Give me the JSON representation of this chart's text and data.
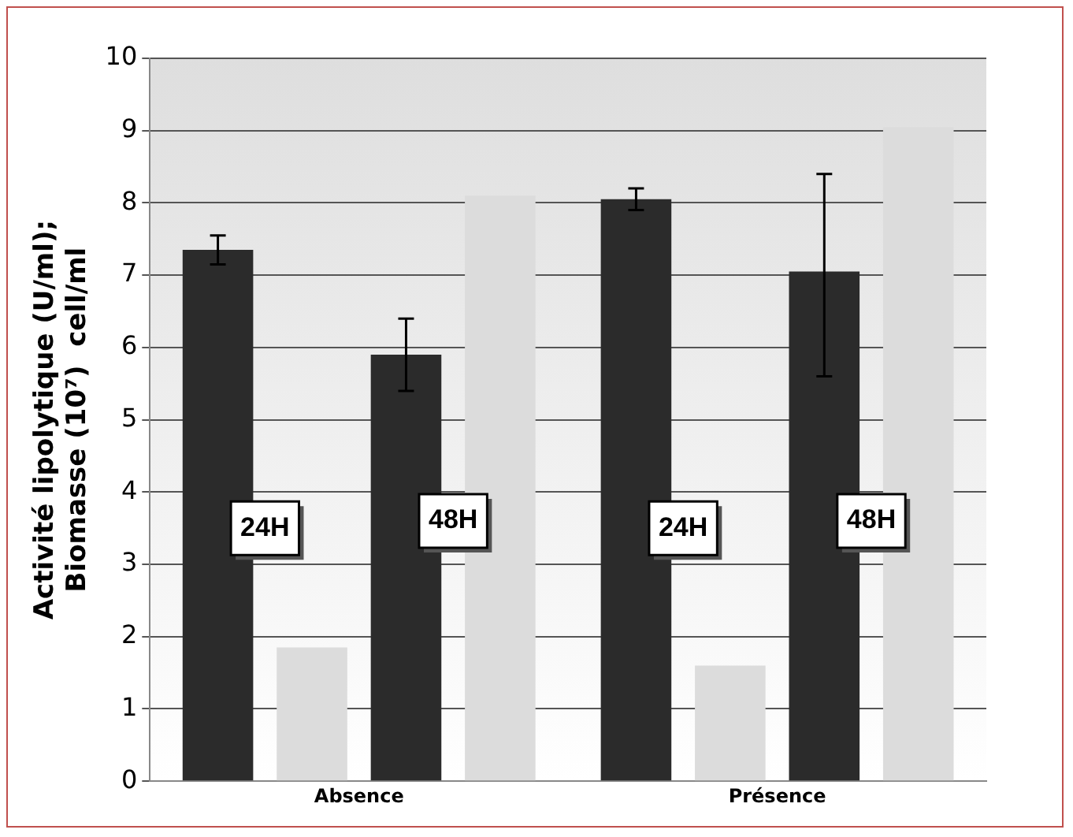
{
  "chart_data": {
    "type": "bar",
    "ylabel": "Activité lipolytique (U/ml); Biomasse (10⁷)  cell/ml",
    "categories": [
      "Absence",
      "Présence"
    ],
    "series": [
      {
        "color": "#2b2b2b",
        "values": [
          7.35,
          8.05
        ],
        "errors": [
          0.2,
          0.15
        ]
      },
      {
        "color": "#dcdcdc",
        "values": [
          1.85,
          1.6
        ]
      },
      {
        "color": "#2b2b2b",
        "values": [
          5.9,
          7.05
        ],
        "errors": [
          0.5,
          [
            5.6,
            8.4
          ]
        ]
      },
      {
        "color": "#dcdcdc",
        "values": [
          8.1,
          9.05
        ]
      }
    ],
    "ylim": [
      0,
      10
    ],
    "yticks": [
      0,
      1,
      2,
      3,
      4,
      5,
      6,
      7,
      8,
      9,
      10
    ],
    "grid": "y",
    "legend": false,
    "annotations": [
      "24H",
      "48H",
      "24H",
      "48H"
    ]
  }
}
